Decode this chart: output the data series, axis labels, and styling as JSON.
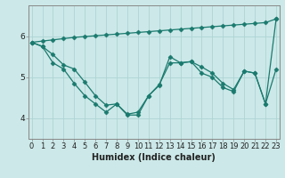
{
  "xlabel": "Humidex (Indice chaleur)",
  "xlim": [
    -0.3,
    23.3
  ],
  "ylim": [
    3.5,
    6.75
  ],
  "yticks": [
    4,
    5,
    6
  ],
  "xticks": [
    0,
    1,
    2,
    3,
    4,
    5,
    6,
    7,
    8,
    9,
    10,
    11,
    12,
    13,
    14,
    15,
    16,
    17,
    18,
    19,
    20,
    21,
    22,
    23
  ],
  "bg_color": "#cce8e8",
  "line_color": "#1a7a6e",
  "grid_color": "#add4d4",
  "series": [
    {
      "x": [
        0,
        1,
        2,
        3,
        4,
        5,
        6,
        7,
        8,
        9,
        10,
        11,
        12,
        13,
        14,
        15,
        16,
        17,
        18,
        19,
        20,
        21,
        22,
        23
      ],
      "y": [
        5.85,
        5.88,
        5.91,
        5.94,
        5.97,
        5.99,
        6.01,
        6.03,
        6.05,
        6.07,
        6.09,
        6.11,
        6.13,
        6.15,
        6.17,
        6.19,
        6.21,
        6.23,
        6.25,
        6.27,
        6.29,
        6.31,
        6.33,
        6.42
      ]
    },
    {
      "x": [
        0,
        1,
        2,
        3,
        4,
        5,
        6,
        7,
        8,
        9,
        10,
        11,
        12,
        13,
        14,
        15,
        16,
        17,
        18,
        19,
        20,
        21,
        22,
        23
      ],
      "y": [
        5.85,
        5.75,
        5.35,
        5.2,
        4.85,
        4.55,
        4.35,
        4.15,
        4.35,
        4.08,
        4.08,
        4.55,
        4.8,
        5.5,
        5.35,
        5.38,
        5.1,
        5.0,
        4.75,
        4.65,
        5.15,
        5.1,
        4.35,
        6.42
      ]
    },
    {
      "x": [
        0,
        1,
        2,
        3,
        4,
        5,
        6,
        7,
        8,
        9,
        10,
        11,
        12,
        13,
        14,
        15,
        16,
        17,
        18,
        19,
        20,
        21,
        22,
        23
      ],
      "y": [
        5.85,
        5.75,
        5.55,
        5.3,
        5.2,
        4.88,
        4.55,
        4.32,
        4.35,
        4.1,
        4.15,
        4.55,
        4.82,
        5.35,
        5.35,
        5.38,
        5.25,
        5.1,
        4.85,
        4.7,
        5.15,
        5.1,
        4.35,
        5.2
      ]
    }
  ],
  "font_color": "#222222",
  "axis_color": "#888888",
  "xlabel_fontsize": 7,
  "tick_fontsize": 6,
  "marker": "D",
  "markersize": 2.5,
  "linewidth": 0.9
}
